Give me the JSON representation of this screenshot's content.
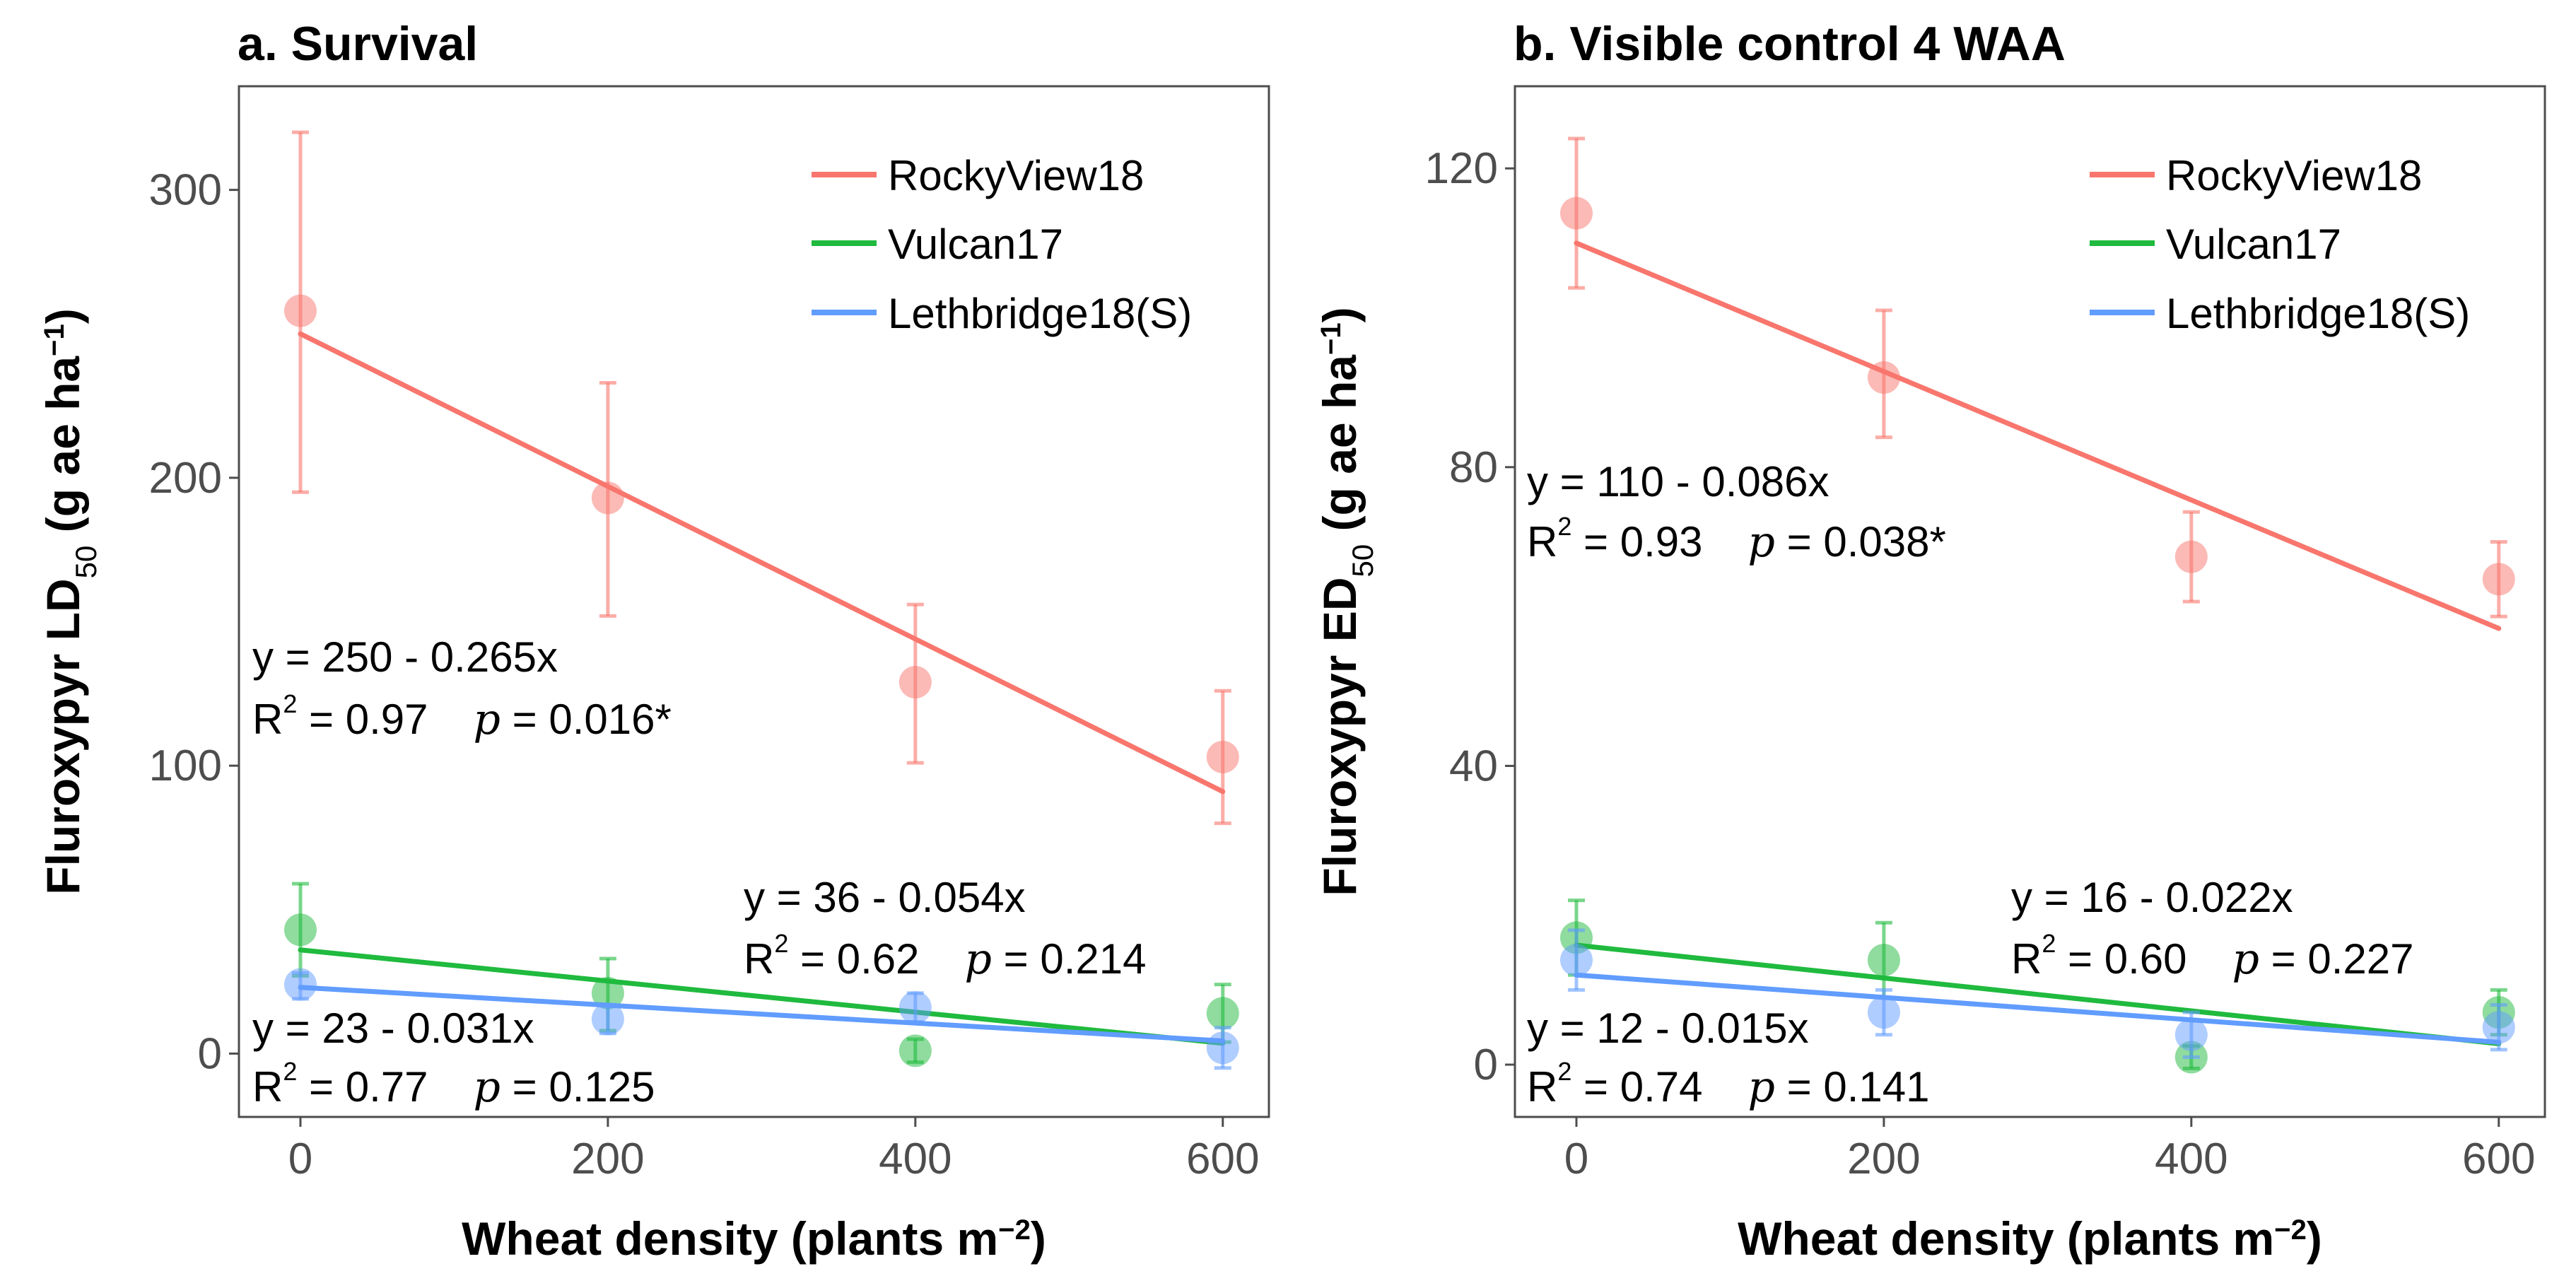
{
  "chart_data": [
    {
      "type": "scatter",
      "title": "a. Survival",
      "xlabel": "Wheat density (plants  m",
      "xlabel_sup": "−2",
      "xlabel_end": ")",
      "ylabel_main": "Fluroxypyr  LD",
      "ylabel_sub": "50",
      "ylabel_units": " (g ae  ha",
      "ylabel_sup": "−1",
      "ylabel_end": ")",
      "xlim": [
        -40,
        630
      ],
      "ylim": [
        -22,
        336
      ],
      "x_ticks": [
        0,
        200,
        400,
        600
      ],
      "x_tick_labels": [
        "0",
        "200",
        "400",
        "600"
      ],
      "y_ticks": [
        0,
        100,
        200,
        300
      ],
      "y_tick_labels": [
        "0",
        "100",
        "200",
        "300"
      ],
      "series": [
        {
          "name": "RockyView18",
          "color": "#f8766d",
          "x": [
            0,
            200,
            400,
            600
          ],
          "y": [
            258,
            193,
            129,
            103
          ],
          "err_low": [
            195,
            152,
            101,
            80
          ],
          "err_high": [
            320,
            233,
            156,
            126
          ],
          "fit": [
            250,
            -0.265
          ]
        },
        {
          "name": "Vulcan17",
          "color": "#1fba3e",
          "x": [
            0,
            200,
            400,
            600
          ],
          "y": [
            43,
            21,
            1,
            14
          ],
          "err_low": [
            27,
            8,
            -3,
            4
          ],
          "err_high": [
            59,
            33,
            5,
            24
          ],
          "fit": [
            36,
            -0.054
          ]
        },
        {
          "name": "Lethbridge18(S)",
          "color": "#619cff",
          "x": [
            0,
            200,
            400,
            600
          ],
          "y": [
            24,
            12,
            16,
            2
          ],
          "err_low": [
            19,
            7,
            11,
            -5
          ],
          "err_high": [
            28,
            17,
            21,
            9
          ],
          "fit": [
            23,
            -0.031
          ]
        }
      ],
      "annotations": [
        {
          "eq": "y = 250 - 0.265x",
          "r2_label": "R",
          "r2_sup": "2",
          "r2_value": " = 0.97",
          "p_label": "p",
          "p_value": " = 0.016*"
        },
        {
          "eq": "y = 36 - 0.054x",
          "r2_label": "R",
          "r2_sup": "2",
          "r2_value": " = 0.62",
          "p_label": "p",
          "p_value": " = 0.214"
        },
        {
          "eq": "y = 23 - 0.031x",
          "r2_label": "R",
          "r2_sup": "2",
          "r2_value": " = 0.77",
          "p_label": "p",
          "p_value": " = 0.125"
        }
      ],
      "legend_position": "top-right"
    },
    {
      "type": "scatter",
      "title": "b. Visible control 4 WAA",
      "xlabel": "Wheat density (plants  m",
      "xlabel_sup": "−2",
      "xlabel_end": ")",
      "ylabel_main": "Fluroxypyr  ED",
      "ylabel_sub": "50",
      "ylabel_units": " (g ae  ha",
      "ylabel_sup": "−1",
      "ylabel_end": ")",
      "xlim": [
        -40,
        630
      ],
      "ylim": [
        -7,
        131
      ],
      "x_ticks": [
        0,
        200,
        400,
        600
      ],
      "x_tick_labels": [
        "0",
        "200",
        "400",
        "600"
      ],
      "y_ticks": [
        0,
        40,
        80,
        120
      ],
      "y_tick_labels": [
        "0",
        "40",
        "80",
        "120"
      ],
      "series": [
        {
          "name": "RockyView18",
          "color": "#f8766d",
          "x": [
            0,
            200,
            400,
            600
          ],
          "y": [
            114,
            92,
            68,
            65
          ],
          "err_low": [
            104,
            84,
            62,
            60
          ],
          "err_high": [
            124,
            101,
            74,
            70
          ],
          "fit": [
            110,
            -0.086
          ]
        },
        {
          "name": "Vulcan17",
          "color": "#1fba3e",
          "x": [
            0,
            200,
            400,
            600
          ],
          "y": [
            17,
            14,
            1,
            7
          ],
          "err_low": [
            12,
            9,
            -0.5,
            4
          ],
          "err_high": [
            22,
            19,
            2.5,
            10
          ],
          "fit": [
            16,
            -0.022
          ]
        },
        {
          "name": "Lethbridge18(S)",
          "color": "#619cff",
          "x": [
            0,
            200,
            400,
            600
          ],
          "y": [
            14,
            7,
            4,
            5
          ],
          "err_low": [
            10,
            4,
            1,
            2
          ],
          "err_high": [
            18,
            10,
            7,
            8
          ],
          "fit": [
            12,
            -0.015
          ]
        }
      ],
      "annotations": [
        {
          "eq": "y = 110 - 0.086x",
          "r2_label": "R",
          "r2_sup": "2",
          "r2_value": " = 0.93",
          "p_label": "p",
          "p_value": " = 0.038*"
        },
        {
          "eq": "y = 16 - 0.022x",
          "r2_label": "R",
          "r2_sup": "2",
          "r2_value": " = 0.60",
          "p_label": "p",
          "p_value": " = 0.227"
        },
        {
          "eq": "y = 12 - 0.015x",
          "r2_label": "R",
          "r2_sup": "2",
          "r2_value": " = 0.74",
          "p_label": "p",
          "p_value": " = 0.141"
        }
      ],
      "legend_position": "top-right"
    }
  ]
}
